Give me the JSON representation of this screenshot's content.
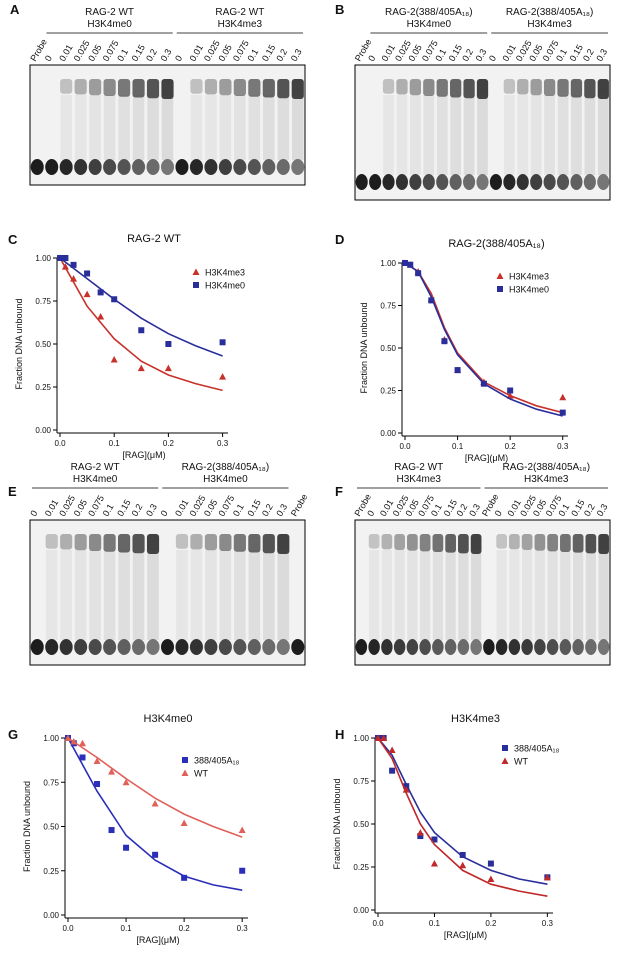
{
  "gels": [
    {
      "letter": "A",
      "columns": [
        {
          "lanes": [
            "Probe"
          ]
        },
        {
          "header": [
            "RAG-2 WT",
            "H3K4me0"
          ],
          "lanes": [
            "0",
            "0.01",
            "0.025",
            "0.05",
            "0.075",
            "0.1",
            "0.15",
            "0.2",
            "0.3"
          ]
        },
        {
          "header": [
            "RAG-2 WT",
            "H3K4me3"
          ],
          "lanes": [
            "0",
            "0.01",
            "0.025",
            "0.05",
            "0.075",
            "0.1",
            "0.15",
            "0.2",
            "0.3"
          ]
        }
      ]
    },
    {
      "letter": "B",
      "columns": [
        {
          "lanes": [
            "Probe"
          ]
        },
        {
          "header": [
            "RAG-2(388/405A₁₈)",
            "H3K4me0"
          ],
          "lanes": [
            "0",
            "0.01",
            "0.025",
            "0.05",
            "0.075",
            "0.1",
            "0.15",
            "0.2",
            "0.3"
          ]
        },
        {
          "header": [
            "RAG-2(388/405A₁₈)",
            "H3K4me3"
          ],
          "lanes": [
            "0",
            "0.01",
            "0.025",
            "0.05",
            "0.075",
            "0.1",
            "0.15",
            "0.2",
            "0.3"
          ]
        }
      ]
    },
    {
      "letter": "E",
      "columns": [
        {
          "header": [
            "RAG-2 WT",
            "H3K4me0"
          ],
          "lanes": [
            "0",
            "0.01",
            "0.025",
            "0.05",
            "0.075",
            "0.1",
            "0.15",
            "0.2",
            "0.3"
          ]
        },
        {
          "header": [
            "RAG-2(388/405A₁₈)",
            "H3K4me0"
          ],
          "lanes": [
            "0",
            "0.01",
            "0.025",
            "0.05",
            "0.075",
            "0.1",
            "0.15",
            "0.2",
            "0.3"
          ]
        },
        {
          "lanes": [
            "Probe"
          ]
        }
      ]
    },
    {
      "letter": "F",
      "columns": [
        {
          "header": [
            "RAG-2 WT",
            "H3K4me3"
          ],
          "lanes": [
            "Probe",
            "0",
            "0.01",
            "0.025",
            "0.05",
            "0.075",
            "0.1",
            "0.15",
            "0.2",
            "0.3"
          ]
        },
        {
          "header": [
            "RAG-2(388/405A₁₈)",
            "H3K4me3"
          ],
          "lanes": [
            "Probe",
            "0",
            "0.01",
            "0.025",
            "0.05",
            "0.075",
            "0.1",
            "0.15",
            "0.2",
            "0.3"
          ]
        }
      ]
    }
  ],
  "chart_data": [
    {
      "type": "scatter",
      "letter": "C",
      "title": "RAG-2 WT",
      "xlabel": "[RAG](μM)",
      "ylabel": "Fraction DNA unbound",
      "xlim": [
        0,
        0.31
      ],
      "ylim": [
        0,
        1
      ],
      "xticks": [
        {
          "value": 0,
          "label": "0.0"
        },
        0.1,
        0.2,
        0.3
      ],
      "yticks": [
        {
          "value": 0,
          "label": "0.00"
        },
        {
          "value": 0.25,
          "label": "0.25"
        },
        {
          "value": 0.5,
          "label": "0.50"
        },
        {
          "value": 0.75,
          "label": "0.75"
        },
        {
          "value": 1,
          "label": "1.00"
        }
      ],
      "series": [
        {
          "name": "H3K4me3",
          "color": "#c8312a",
          "marker": "triangle",
          "x": [
            0,
            0.01,
            0.025,
            0.05,
            0.075,
            0.1,
            0.15,
            0.2,
            0.3
          ],
          "values": [
            1.0,
            0.95,
            0.88,
            0.79,
            0.66,
            0.41,
            0.36,
            0.36,
            0.31
          ],
          "fit_x": [
            0,
            0.05,
            0.1,
            0.15,
            0.2,
            0.25,
            0.3
          ],
          "fit_values": [
            1.0,
            0.72,
            0.53,
            0.4,
            0.32,
            0.27,
            0.23
          ]
        },
        {
          "name": "H3K4me0",
          "color": "#2a2e9a",
          "marker": "square",
          "x": [
            0,
            0.01,
            0.025,
            0.05,
            0.075,
            0.1,
            0.15,
            0.2,
            0.3
          ],
          "values": [
            1.0,
            1.0,
            0.96,
            0.91,
            0.8,
            0.76,
            0.58,
            0.5,
            0.51
          ],
          "fit_x": [
            0,
            0.05,
            0.1,
            0.15,
            0.2,
            0.25,
            0.3
          ],
          "fit_values": [
            1.0,
            0.88,
            0.76,
            0.65,
            0.56,
            0.49,
            0.43
          ]
        }
      ]
    },
    {
      "type": "scatter",
      "letter": "D",
      "title": "RAG-2(388/405A₁₈)",
      "xlabel": "[RAG](μM)",
      "ylabel": "Fraction DNA unbound",
      "xlim": [
        0,
        0.31
      ],
      "ylim": [
        0,
        1
      ],
      "xticks": [
        {
          "value": 0,
          "label": "0.0"
        },
        0.1,
        0.2,
        0.3
      ],
      "yticks": [
        {
          "value": 0,
          "label": "0.00"
        },
        {
          "value": 0.25,
          "label": "0.25"
        },
        {
          "value": 0.5,
          "label": "0.50"
        },
        {
          "value": 0.75,
          "label": "0.75"
        },
        {
          "value": 1,
          "label": "1.00"
        }
      ],
      "series": [
        {
          "name": "H3K4me3",
          "color": "#c8312a",
          "marker": "triangle",
          "x": [
            0,
            0.01,
            0.025,
            0.05,
            0.075,
            0.1,
            0.15,
            0.2,
            0.3
          ],
          "values": [
            1.0,
            0.99,
            0.95,
            0.79,
            0.55,
            0.37,
            0.3,
            0.22,
            0.21
          ],
          "fit_x": [
            0,
            0.025,
            0.05,
            0.075,
            0.1,
            0.15,
            0.2,
            0.25,
            0.3
          ],
          "fit_values": [
            1.0,
            0.95,
            0.82,
            0.62,
            0.47,
            0.3,
            0.22,
            0.16,
            0.12
          ]
        },
        {
          "name": "H3K4me0",
          "color": "#2a2e9a",
          "marker": "square",
          "x": [
            0,
            0.01,
            0.025,
            0.05,
            0.075,
            0.1,
            0.15,
            0.2,
            0.3
          ],
          "values": [
            1.0,
            0.99,
            0.94,
            0.78,
            0.54,
            0.37,
            0.29,
            0.25,
            0.12
          ],
          "fit_x": [
            0,
            0.025,
            0.05,
            0.075,
            0.1,
            0.15,
            0.2,
            0.25,
            0.3
          ],
          "fit_values": [
            1.0,
            0.95,
            0.8,
            0.61,
            0.46,
            0.29,
            0.2,
            0.14,
            0.1
          ]
        }
      ]
    },
    {
      "type": "scatter",
      "letter": "G",
      "title": "H3K4me0",
      "xlabel": "[RAG](μM)",
      "ylabel": "Fraction DNA unbound",
      "xlim": [
        0,
        0.31
      ],
      "ylim": [
        0,
        1
      ],
      "xticks": [
        {
          "value": 0,
          "label": "0.0"
        },
        0.1,
        0.2,
        0.3
      ],
      "yticks": [
        {
          "value": 0,
          "label": "0.00"
        },
        {
          "value": 0.25,
          "label": "0.25"
        },
        {
          "value": 0.5,
          "label": "0.50"
        },
        {
          "value": 0.75,
          "label": "0.75"
        },
        {
          "value": 1,
          "label": "1.00"
        }
      ],
      "series": [
        {
          "name": "388/405A₁₈",
          "color": "#2a2eb8",
          "marker": "square",
          "x": [
            0,
            0.01,
            0.025,
            0.05,
            0.075,
            0.1,
            0.15,
            0.2,
            0.3
          ],
          "values": [
            1.0,
            0.97,
            0.89,
            0.74,
            0.48,
            0.38,
            0.34,
            0.21,
            0.25
          ],
          "fit_x": [
            0,
            0.05,
            0.1,
            0.15,
            0.2,
            0.25,
            0.3
          ],
          "fit_values": [
            1.0,
            0.7,
            0.45,
            0.31,
            0.22,
            0.17,
            0.14
          ]
        },
        {
          "name": "WT",
          "color": "#e0605a",
          "marker": "triangle",
          "x": [
            0,
            0.01,
            0.025,
            0.05,
            0.075,
            0.1,
            0.15,
            0.2,
            0.3
          ],
          "values": [
            1.0,
            0.98,
            0.97,
            0.87,
            0.81,
            0.75,
            0.63,
            0.52,
            0.48
          ],
          "fit_x": [
            0,
            0.05,
            0.1,
            0.15,
            0.2,
            0.25,
            0.3
          ],
          "fit_values": [
            1.0,
            0.89,
            0.77,
            0.66,
            0.57,
            0.5,
            0.44
          ]
        }
      ]
    },
    {
      "type": "scatter",
      "letter": "H",
      "title": "H3K4me3",
      "xlabel": "[RAG](μM)",
      "ylabel": "Fraction DNA unbound",
      "xlim": [
        0,
        0.31
      ],
      "ylim": [
        0,
        1
      ],
      "xticks": [
        {
          "value": 0,
          "label": "0.0"
        },
        0.1,
        0.2,
        0.3
      ],
      "yticks": [
        {
          "value": 0,
          "label": "0.00"
        },
        {
          "value": 0.25,
          "label": "0.25"
        },
        {
          "value": 0.5,
          "label": "0.50"
        },
        {
          "value": 0.75,
          "label": "0.75"
        },
        {
          "value": 1,
          "label": "1.00"
        }
      ],
      "series": [
        {
          "name": "388/405A₁₈",
          "color": "#2a2e9a",
          "marker": "square",
          "x": [
            0,
            0.01,
            0.025,
            0.05,
            0.075,
            0.1,
            0.15,
            0.2,
            0.3
          ],
          "values": [
            1.0,
            1.0,
            0.81,
            0.72,
            0.43,
            0.41,
            0.32,
            0.27,
            0.19
          ],
          "fit_x": [
            0,
            0.025,
            0.05,
            0.075,
            0.1,
            0.15,
            0.2,
            0.25,
            0.3
          ],
          "fit_values": [
            1.0,
            0.9,
            0.73,
            0.57,
            0.45,
            0.31,
            0.23,
            0.18,
            0.15
          ]
        },
        {
          "name": "WT",
          "color": "#c0282a",
          "marker": "triangle",
          "x": [
            0,
            0.01,
            0.025,
            0.05,
            0.075,
            0.1,
            0.15,
            0.2,
            0.3
          ],
          "values": [
            1.0,
            1.0,
            0.93,
            0.7,
            0.45,
            0.27,
            0.26,
            0.18,
            0.19
          ],
          "fit_x": [
            0,
            0.025,
            0.05,
            0.075,
            0.1,
            0.15,
            0.2,
            0.25,
            0.3
          ],
          "fit_values": [
            1.0,
            0.88,
            0.68,
            0.5,
            0.38,
            0.23,
            0.15,
            0.11,
            0.08
          ]
        }
      ]
    }
  ]
}
